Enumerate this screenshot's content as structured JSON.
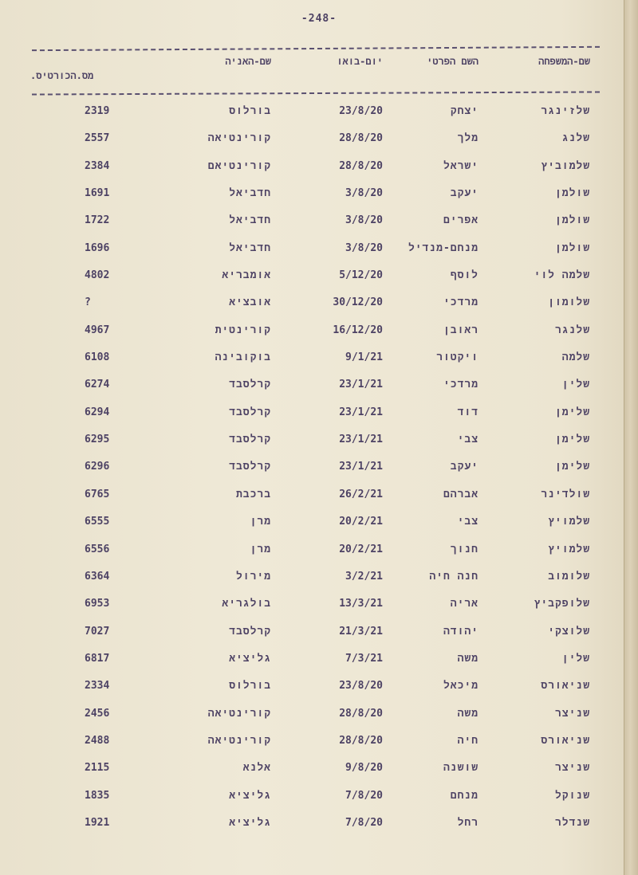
{
  "page_number": "-248-",
  "headers": {
    "last_name": "שם-המשפחה",
    "first_name": "השם הפרטי",
    "arrival_date": "יום-בואו",
    "ship_name": "שם-האניה",
    "certificate_no": "מס.הכורטיס."
  },
  "rows": [
    {
      "last": "שלזינגר",
      "first": "יצחק",
      "date": "23/8/20",
      "ship": "בורלוס",
      "num": "2319"
    },
    {
      "last": "שלנג",
      "first": "מלך",
      "date": "28/8/20",
      "ship": "קורינטיאה",
      "num": "2557"
    },
    {
      "last": "שלמוביץ",
      "first": "ישראל",
      "date": "28/8/20",
      "ship": "קורינטיאם",
      "num": "2384"
    },
    {
      "last": "שולמן",
      "first": "יעקב",
      "date": "3/8/20",
      "ship": "חדביאל",
      "num": "1691"
    },
    {
      "last": "שולמן",
      "first": "אפרים",
      "date": "3/8/20",
      "ship": "חדביאל",
      "num": "1722"
    },
    {
      "last": "שולמן",
      "first": "מנחם-מנדיל",
      "date": "3/8/20",
      "ship": "חדביאל",
      "num": "1696"
    },
    {
      "last": "שלמה לוי",
      "first": "לוסף",
      "date": "5/12/20",
      "ship": "אומבריא",
      "num": "4802"
    },
    {
      "last": "שלומון",
      "first": "מרדכי",
      "date": "30/12/20",
      "ship": "אובציא",
      "num": "?"
    },
    {
      "last": "שלנגר",
      "first": "ראובן",
      "date": "16/12/20",
      "ship": "קורינטית",
      "num": "4967"
    },
    {
      "last": "שלמה",
      "first": "ויקטור",
      "date": "9/1/21",
      "ship": "בוקובינה",
      "num": "6108"
    },
    {
      "last": "שלין",
      "first": "מרדכי",
      "date": "23/1/21",
      "ship": "קרלסבד",
      "num": "6274"
    },
    {
      "last": "שלימן",
      "first": "דוד",
      "date": "23/1/21",
      "ship": "קרלסבד",
      "num": "6294"
    },
    {
      "last": "שלימן",
      "first": "צבי",
      "date": "23/1/21",
      "ship": "קרלסבד",
      "num": "6295"
    },
    {
      "last": "שלימן",
      "first": "יעקב",
      "date": "23/1/21",
      "ship": "קרלסבד",
      "num": "6296"
    },
    {
      "last": "שולדינר",
      "first": "אברהם",
      "date": "26/2/21",
      "ship": "ברכבת",
      "num": "6765"
    },
    {
      "last": "שלמויץ",
      "first": "צבי",
      "date": "20/2/21",
      "ship": "מרן",
      "num": "6555"
    },
    {
      "last": "שלמויץ",
      "first": "חנוך",
      "date": "20/2/21",
      "ship": "מרן",
      "num": "6556"
    },
    {
      "last": "שלומוב",
      "first": "חנה חיה",
      "date": "3/2/21",
      "ship": "מירול",
      "num": "6364"
    },
    {
      "last": "שלופקביץ",
      "first": "אריה",
      "date": "13/3/21",
      "ship": "בולגריא",
      "num": "6953"
    },
    {
      "last": "שלוצקי",
      "first": "יהודה",
      "date": "21/3/21",
      "ship": "קרלסבד",
      "num": "7027"
    },
    {
      "last": "שלין",
      "first": "משה",
      "date": "7/3/21",
      "ship": "גליציא",
      "num": "6817"
    },
    {
      "last": "שניאורס",
      "first": "מיכאל",
      "date": "23/8/20",
      "ship": "בורלוס",
      "num": "2334"
    },
    {
      "last": "שניצר",
      "first": "משה",
      "date": "28/8/20",
      "ship": "קורינטיאה",
      "num": "2456"
    },
    {
      "last": "שניאורס",
      "first": "חיה",
      "date": "28/8/20",
      "ship": "קורינטיאה",
      "num": "2488"
    },
    {
      "last": "שניצר",
      "first": "שושנה",
      "date": "9/8/20",
      "ship": "אלנא",
      "num": "2115"
    },
    {
      "last": "שנוקל",
      "first": "מנחם",
      "date": "7/8/20",
      "ship": "גליציא",
      "num": "1835"
    },
    {
      "last": "שנדלר",
      "first": "רחל",
      "date": "7/8/20",
      "ship": "גליציא",
      "num": "1921"
    }
  ]
}
